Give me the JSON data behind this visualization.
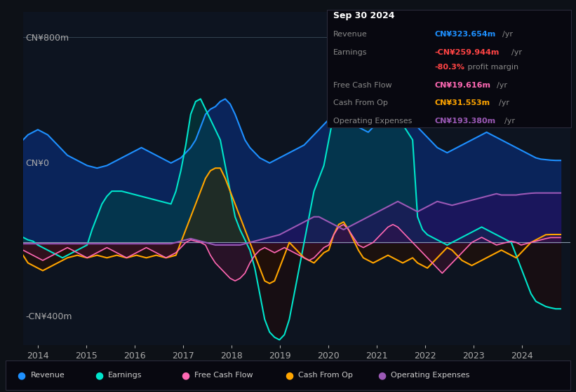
{
  "bg_color": "#0d1117",
  "plot_bg_color": "#0d1420",
  "y_label_top": "CN¥800m",
  "y_label_zero": "CN¥0",
  "y_label_bottom": "-CN¥400m",
  "ylim": [
    -400,
    900
  ],
  "xlim_start": 2013.7,
  "xlim_end": 2025.0,
  "x_ticks": [
    2014,
    2015,
    2016,
    2017,
    2018,
    2019,
    2020,
    2021,
    2022,
    2023,
    2024
  ],
  "revenue_color": "#1e90ff",
  "revenue_fill": "#0a2a6e",
  "earnings_color": "#00e5cc",
  "earnings_fill_pos": "#004444",
  "earnings_fill_neg": "#200a0a",
  "cashop_color": "#ffa500",
  "cashop_fill_pos": "#3a2500",
  "cashop_fill_neg": "#2a1000",
  "fcf_color": "#ff69b4",
  "fcf_fill": "#4a1030",
  "opex_color": "#9b59b6",
  "opex_fill": "#2a0a5e",
  "series_labels": [
    "Revenue",
    "Earnings",
    "Free Cash Flow",
    "Cash From Op",
    "Operating Expenses"
  ],
  "series_colors": [
    "#1e90ff",
    "#00e5cc",
    "#ff69b4",
    "#ffa500",
    "#9b59b6"
  ],
  "info_box": {
    "date": "Sep 30 2024",
    "revenue_label": "Revenue",
    "revenue_value": "CN¥323.654m",
    "revenue_color": "#1e90ff",
    "earnings_label": "Earnings",
    "earnings_value": "-CN¥259.944m",
    "earnings_color": "#ff4444",
    "margin_value": "-80.3%",
    "margin_color": "#ff4444",
    "margin_text": " profit margin",
    "fcf_label": "Free Cash Flow",
    "fcf_value": "CN¥19.616m",
    "fcf_color": "#ff69b4",
    "cashop_label": "Cash From Op",
    "cashop_value": "CN¥31.553m",
    "cashop_color": "#ffa500",
    "opex_label": "Operating Expenses",
    "opex_value": "CN¥193.380m",
    "opex_color": "#9b59b6"
  }
}
